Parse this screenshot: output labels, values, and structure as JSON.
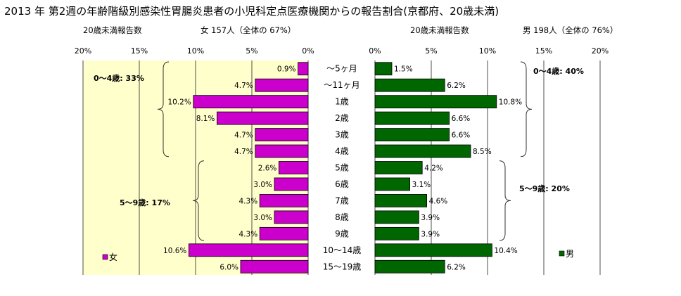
{
  "title": "2013 年 第2週の年齢階級別感染性胃腸炎患者の小児科定点医療機関からの報告割合(京都府、20歳未満)",
  "chart_data": [
    {
      "type": "bar",
      "orientation": "horizontal",
      "direction": "right-to-left",
      "subtitle_left": "20歳未満報告数",
      "subtitle_right": "女  157人（全体の  67%）",
      "legend": "女",
      "legend_position": "bottom-left",
      "color": "#CC00CC",
      "xlim": [
        0,
        20
      ],
      "xticks": [
        "20%",
        "15%",
        "10%",
        "5%",
        "0%"
      ],
      "grid": true,
      "categories": [
        "～5ヶ月",
        "～11ヶ月",
        "1歳",
        "2歳",
        "3歳",
        "4歳",
        "5歳",
        "6歳",
        "7歳",
        "8歳",
        "9歳",
        "10～14歳",
        "15～19歳"
      ],
      "values": [
        0.9,
        4.7,
        10.2,
        8.1,
        4.7,
        4.7,
        2.6,
        3.0,
        4.3,
        3.0,
        4.3,
        10.6,
        6.0
      ],
      "labels": [
        "0.9%",
        "4.7%",
        "10.2%",
        "8.1%",
        "4.7%",
        "4.7%",
        "2.6%",
        "3.0%",
        "4.3%",
        "3.0%",
        "4.3%",
        "10.6%",
        "6.0%"
      ],
      "annotations": [
        "0～4歳: 33%",
        "5～9歳: 17%"
      ]
    },
    {
      "type": "bar",
      "orientation": "horizontal",
      "direction": "left-to-right",
      "subtitle_left": "20歳未満報告数",
      "subtitle_right": "男  198人（全体の  76%）",
      "legend": "男",
      "legend_position": "bottom-right",
      "color": "#006600",
      "xlim": [
        0,
        20
      ],
      "xticks": [
        "0%",
        "5%",
        "10%",
        "15%",
        "20%"
      ],
      "grid": true,
      "categories": [
        "～5ヶ月",
        "～11ヶ月",
        "1歳",
        "2歳",
        "3歳",
        "4歳",
        "5歳",
        "6歳",
        "7歳",
        "8歳",
        "9歳",
        "10～14歳",
        "15～19歳"
      ],
      "values": [
        1.5,
        6.2,
        10.8,
        6.6,
        6.6,
        8.5,
        4.2,
        3.1,
        4.6,
        3.9,
        3.9,
        10.4,
        6.2
      ],
      "labels": [
        "1.5%",
        "6.2%",
        "10.8%",
        "6.6%",
        "6.6%",
        "8.5%",
        "4.2%",
        "3.1%",
        "4.6%",
        "3.9%",
        "3.9%",
        "10.4%",
        "6.2%"
      ],
      "annotations": [
        "0～4歳: 40%",
        "5～9歳: 20%"
      ]
    }
  ]
}
